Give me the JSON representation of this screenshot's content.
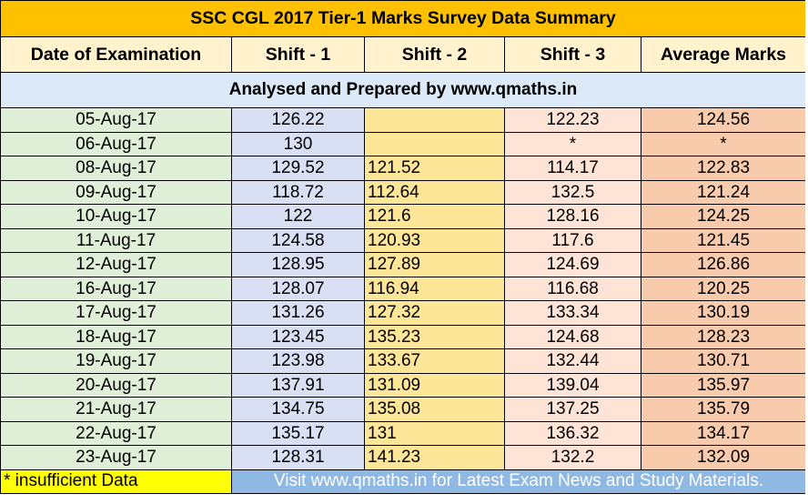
{
  "title": "SSC CGL 2017 Tier-1 Marks Survey Data Summary",
  "columns": [
    "Date of Examination",
    "Shift - 1",
    "Shift - 2",
    "Shift - 3",
    "Average Marks"
  ],
  "subtitle": "Analysed and Prepared by www.qmaths.in",
  "rows": [
    {
      "date": "05-Aug-17",
      "shift1": "126.22",
      "shift2": "",
      "shift3": "122.23",
      "avg": "124.56"
    },
    {
      "date": "06-Aug-17",
      "shift1": "130",
      "shift2": "",
      "shift3": "*",
      "avg": "*"
    },
    {
      "date": "08-Aug-17",
      "shift1": "129.52",
      "shift2": "121.52",
      "shift3": "114.17",
      "avg": "122.83"
    },
    {
      "date": "09-Aug-17",
      "shift1": "118.72",
      "shift2": "112.64",
      "shift3": "132.5",
      "avg": "121.24"
    },
    {
      "date": "10-Aug-17",
      "shift1": "122",
      "shift2": "121.6",
      "shift3": "128.16",
      "avg": "124.25"
    },
    {
      "date": "11-Aug-17",
      "shift1": "124.58",
      "shift2": "120.93",
      "shift3": "117.6",
      "avg": "121.45"
    },
    {
      "date": "12-Aug-17",
      "shift1": "128.95",
      "shift2": "127.89",
      "shift3": "124.69",
      "avg": "126.86"
    },
    {
      "date": "16-Aug-17",
      "shift1": "128.07",
      "shift2": "116.94",
      "shift3": "116.68",
      "avg": "120.25"
    },
    {
      "date": "17-Aug-17",
      "shift1": "131.26",
      "shift2": "127.32",
      "shift3": "133.34",
      "avg": "130.19"
    },
    {
      "date": "18-Aug-17",
      "shift1": "123.45",
      "shift2": "135.23",
      "shift3": "124.68",
      "avg": "128.23"
    },
    {
      "date": "19-Aug-17",
      "shift1": "123.98",
      "shift2": "133.67",
      "shift3": "132.44",
      "avg": "130.71"
    },
    {
      "date": "20-Aug-17",
      "shift1": "137.91",
      "shift2": "131.09",
      "shift3": "139.04",
      "avg": "135.97"
    },
    {
      "date": "21-Aug-17",
      "shift1": "134.75",
      "shift2": "135.08",
      "shift3": "137.25",
      "avg": "135.79"
    },
    {
      "date": "22-Aug-17",
      "shift1": "135.17",
      "shift2": "131",
      "shift3": "136.32",
      "avg": "134.17"
    },
    {
      "date": "23-Aug-17",
      "shift1": "128.31",
      "shift2": "141.23",
      "shift3": "132.2",
      "avg": "132.09"
    }
  ],
  "footer": {
    "note": "* insufficient Data",
    "visit": "Visit www.qmaths.in for Latest Exam News and Study Materials."
  },
  "colors": {
    "title_bg": "#ffc000",
    "header_bg": "#fff2cc",
    "subtitle_bg": "#dbe9f8",
    "date_bg": "#e0efd8",
    "shift1_bg": "#d9e0f3",
    "shift2_bg": "#fee699",
    "shift3_bg": "#fde4d6",
    "avg_bg": "#f8cbac",
    "note_bg": "#ffff00",
    "visit_bg": "#8fb8e3"
  }
}
